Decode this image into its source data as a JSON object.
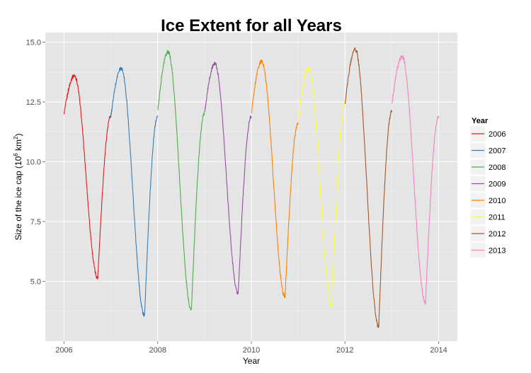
{
  "chart_data": {
    "type": "line",
    "title": "Ice Extent for all Years",
    "xlabel": "Year",
    "ylabel_prefix": "Size of the ice cap (10",
    "ylabel_exp": "6",
    "ylabel_suffix": " km",
    "ylabel_exp2": "2",
    "ylabel_close": ")",
    "xlim": [
      2005.6,
      2014.4
    ],
    "ylim": [
      2.5,
      15.4
    ],
    "x_ticks": [
      2006,
      2008,
      2010,
      2012,
      2014
    ],
    "x_tick_labels": [
      "2006",
      "2008",
      "2010",
      "2012",
      "2014"
    ],
    "y_ticks": [
      5.0,
      7.5,
      10.0,
      12.5,
      15.0
    ],
    "y_tick_labels": [
      "5.0",
      "7.5",
      "10.0",
      "12.5",
      "15.0"
    ],
    "grid": true,
    "legend": {
      "title": "Year",
      "position": "right"
    },
    "series": [
      {
        "name": "2006",
        "color": "#e41a1c",
        "max": 13.6,
        "min": 5.15,
        "max_t": 0.22,
        "min_t": 0.72,
        "start": 12.0,
        "end": 11.9
      },
      {
        "name": "2007",
        "color": "#377eb8",
        "max": 13.9,
        "min": 3.55,
        "max_t": 0.22,
        "min_t": 0.72,
        "start": 11.9,
        "end": 11.9
      },
      {
        "name": "2008",
        "color": "#4daf4a",
        "max": 14.6,
        "min": 3.8,
        "max_t": 0.22,
        "min_t": 0.72,
        "start": 12.1,
        "end": 12.0
      },
      {
        "name": "2009",
        "color": "#984ea3",
        "max": 14.1,
        "min": 4.5,
        "max_t": 0.22,
        "min_t": 0.72,
        "start": 12.0,
        "end": 11.9
      },
      {
        "name": "2010",
        "color": "#ff7f00",
        "max": 14.2,
        "min": 4.35,
        "max_t": 0.22,
        "min_t": 0.72,
        "start": 12.0,
        "end": 11.6
      },
      {
        "name": "2011",
        "color": "#ffff33",
        "max": 13.9,
        "min": 3.95,
        "max_t": 0.22,
        "min_t": 0.72,
        "start": 11.7,
        "end": 12.5
      },
      {
        "name": "2012",
        "color": "#a65628",
        "max": 14.7,
        "min": 3.1,
        "max_t": 0.22,
        "min_t": 0.72,
        "start": 12.4,
        "end": 12.1
      },
      {
        "name": "2013",
        "color": "#f781bf",
        "max": 14.4,
        "min": 4.1,
        "max_t": 0.22,
        "min_t": 0.72,
        "start": 12.4,
        "end": 11.9
      }
    ]
  }
}
